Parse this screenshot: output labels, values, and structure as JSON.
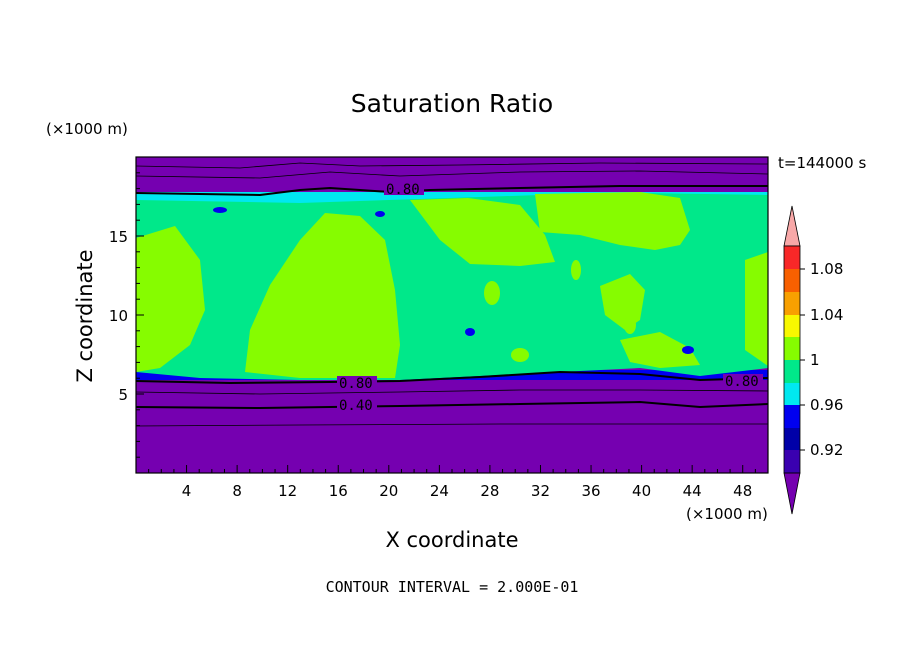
{
  "chart_data": {
    "type": "contour",
    "title": "Saturation Ratio",
    "xlabel": "X coordinate",
    "ylabel": "Z coordinate",
    "x_unit": "(×1000 m)",
    "y_unit": "(×1000 m)",
    "time_label": "t=144000 s",
    "footer": "CONTOUR INTERVAL = 2.000E-01",
    "xlim": [
      0,
      50
    ],
    "ylim": [
      0,
      20
    ],
    "x_ticks": [
      "4",
      "8",
      "12",
      "16",
      "20",
      "24",
      "28",
      "32",
      "36",
      "40",
      "44",
      "48"
    ],
    "y_ticks": [
      "5",
      "10",
      "15"
    ],
    "colorbar_labels": [
      "1.08",
      "1.04",
      "1",
      "0.96",
      "0.92"
    ],
    "contour_labels": [
      "0.80",
      "0.80",
      "0.80",
      "0.40"
    ],
    "colors": {
      "purple": "#7500b0",
      "indigo": "#3a00b0",
      "blue": "#0000f0",
      "cyan": "#00e8f0",
      "spring": "#00e88a",
      "lime": "#86fc00",
      "yellow": "#f8f800",
      "orange": "#f8a000",
      "orangered": "#f86000",
      "red": "#f82828",
      "pink": "#f8a8a8",
      "navy": "#0000a8"
    }
  }
}
